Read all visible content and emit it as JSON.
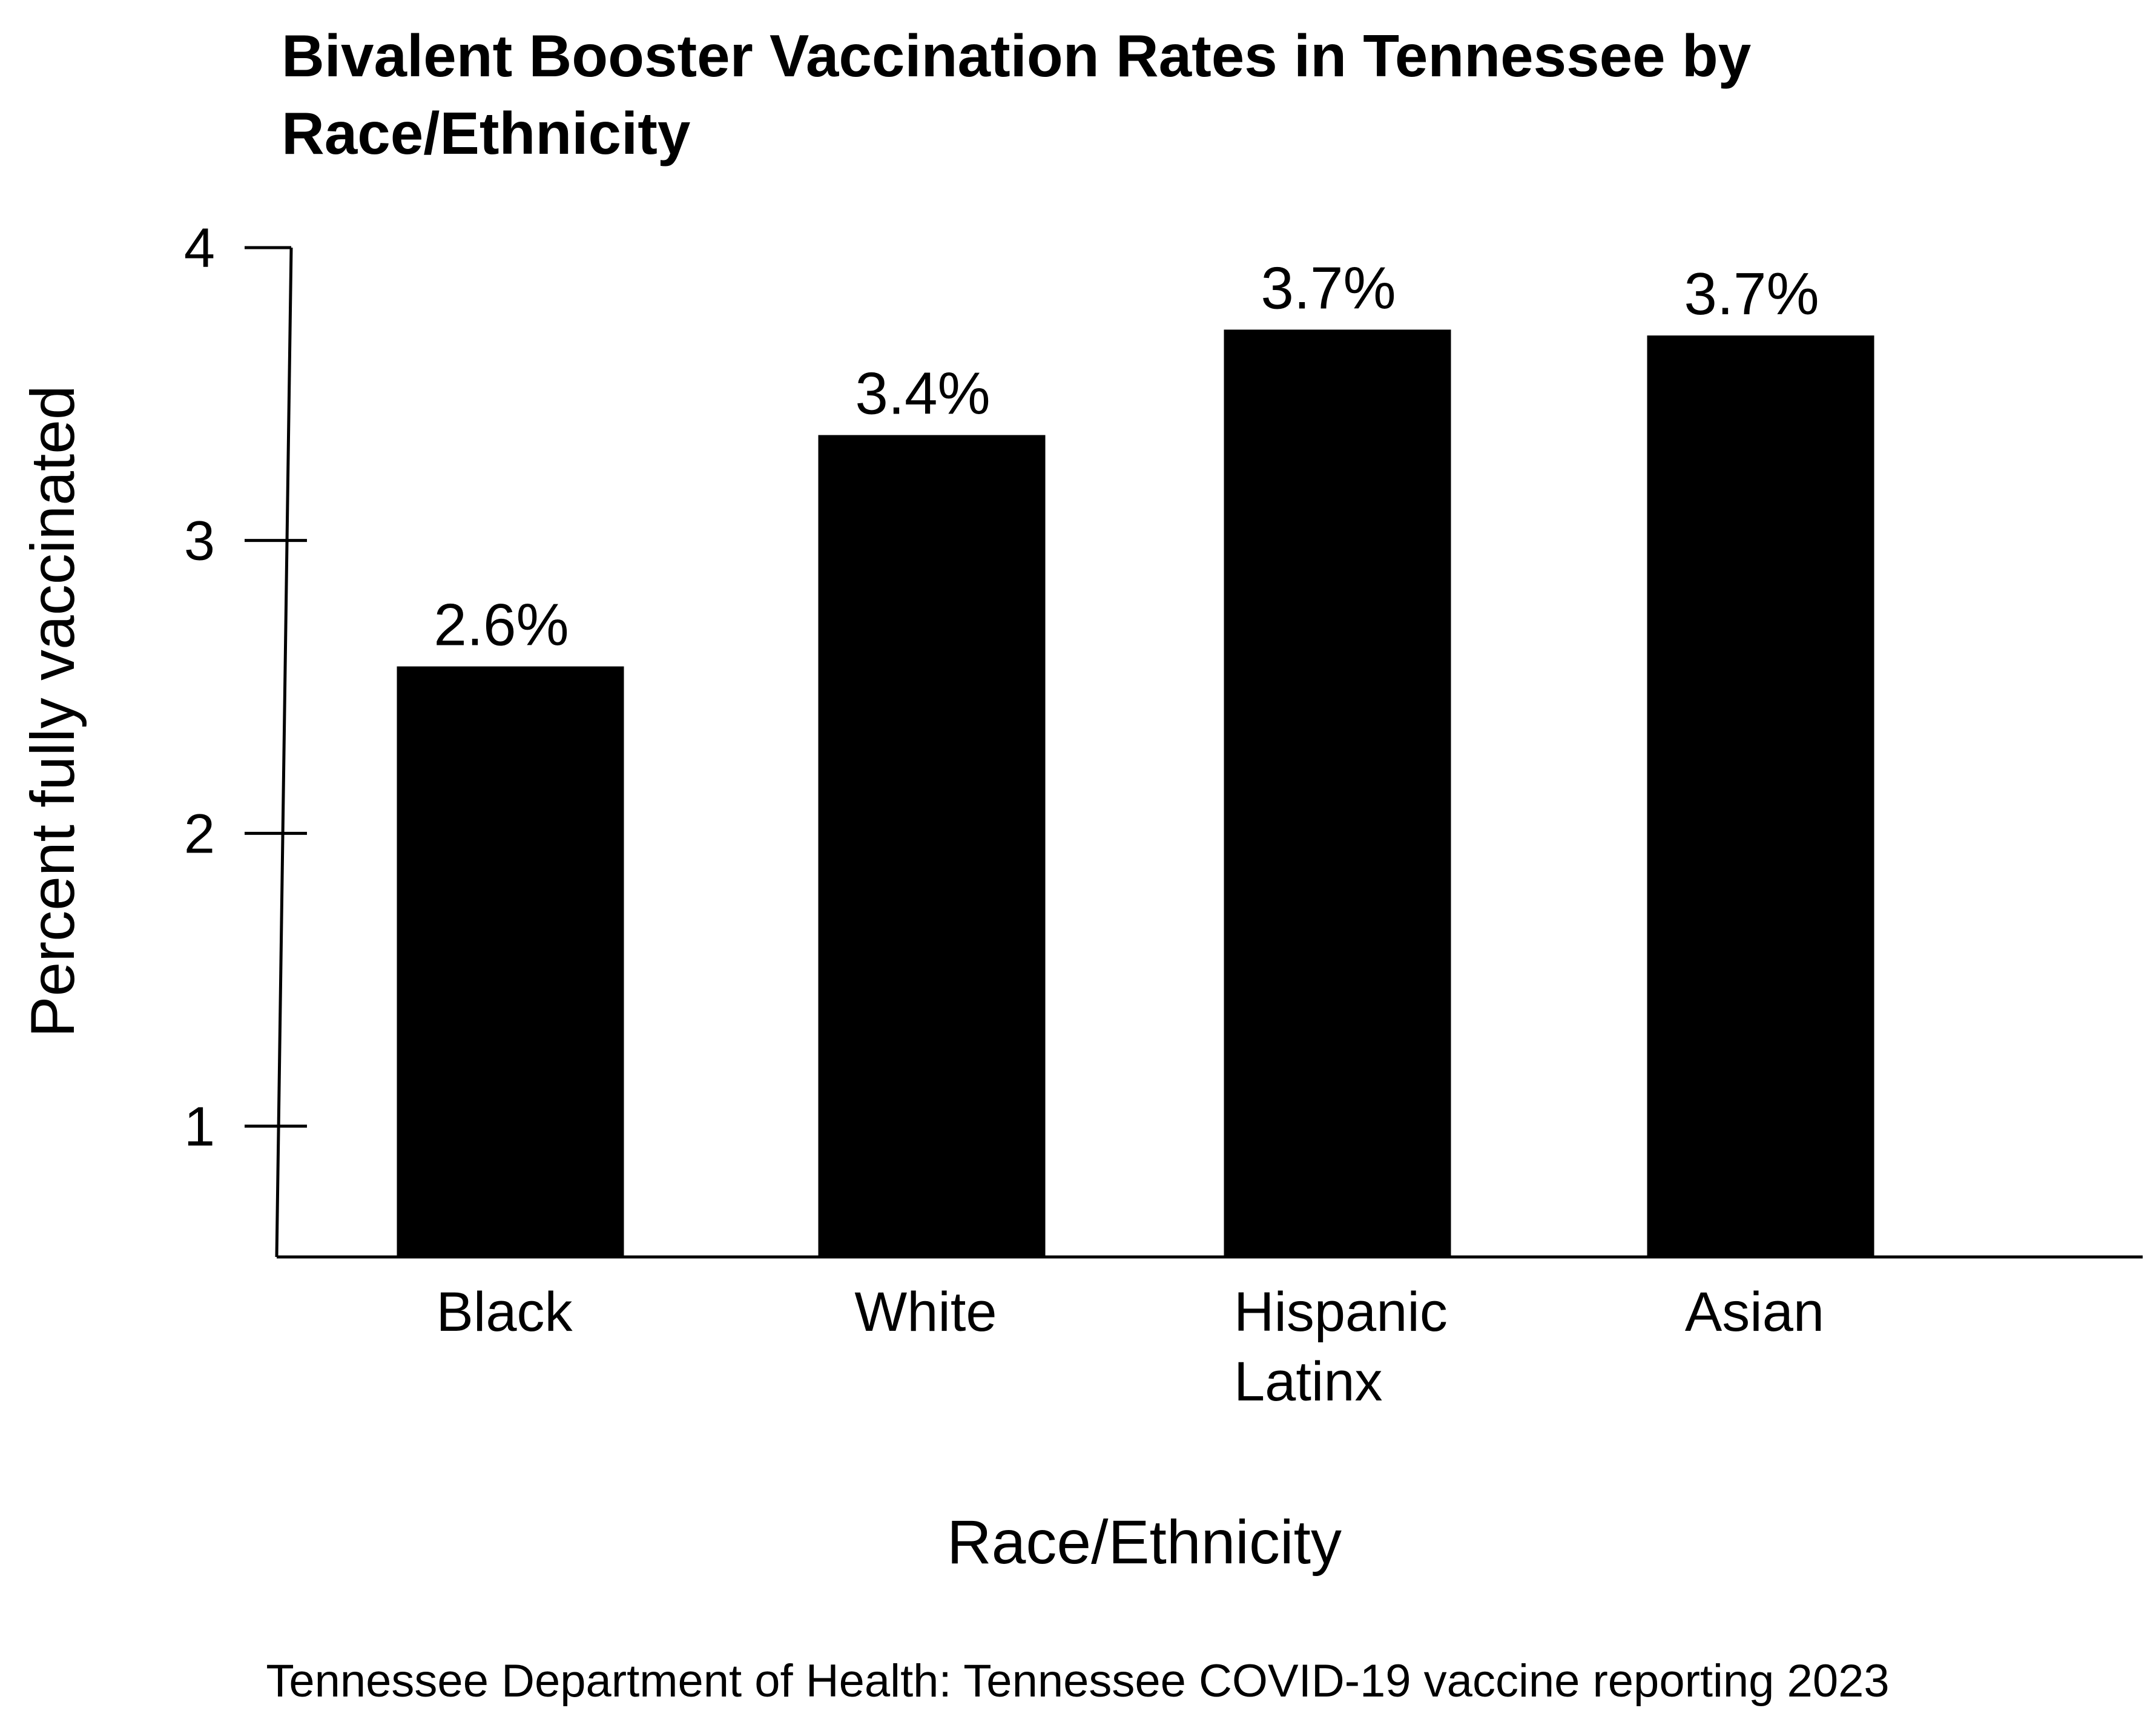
{
  "chart_data": {
    "type": "bar",
    "title_lines": [
      "Bivalent Booster Vaccination Rates in Tennessee by",
      "Race/Ethnicity"
    ],
    "categories": [
      [
        "Black"
      ],
      [
        "White"
      ],
      [
        "Hispanic",
        "Latinx"
      ],
      [
        "Asian"
      ]
    ],
    "values": [
      2.57,
      3.36,
      3.72,
      3.7
    ],
    "data_labels": [
      "2.6%",
      "3.4%",
      "3.7%",
      "3.7%"
    ],
    "xlabel": "Race/Ethnicity",
    "ylabel": "Percent fully vaccinated",
    "ylim": [
      0.55,
      4
    ],
    "yticks": [
      1,
      2,
      3,
      4
    ],
    "ytick_labels": [
      "1",
      "2",
      "3",
      "4"
    ],
    "bar_color": "#000000",
    "grid": false
  },
  "source": "Tennessee Department of Health: Tennessee COVID-19 vaccine reporting 2023"
}
